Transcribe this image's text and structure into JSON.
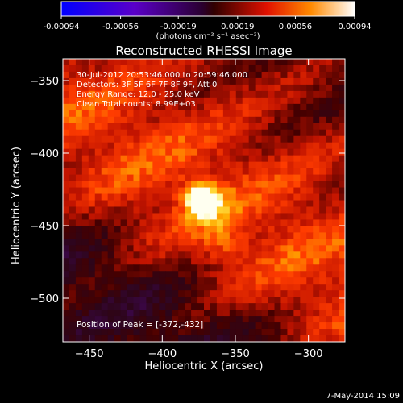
{
  "chart_data": {
    "type": "heatmap",
    "title": "Reconstructed RHESSI Image",
    "xlabel": "Heliocentric X (arcsec)",
    "ylabel": "Heliocentric Y (arcsec)",
    "xlim": [
      -468,
      -275
    ],
    "ylim": [
      -530,
      -335
    ],
    "x_ticks": [
      -450,
      -400,
      -350,
      -300
    ],
    "y_ticks": [
      -350,
      -400,
      -450,
      -500
    ],
    "annotations": [
      "30-Jul-2012 20:53:46.000 to 20:59:46.000",
      "Detectors: 3F 5F 6F 7F 8F 9F, Att 0",
      "Energy Range: 12.0 - 25.0 keV",
      "Clean   Total counts: 8.99E+03"
    ],
    "peak_label": "Position of Peak = [-372,-432]",
    "peak": [
      -372,
      -432
    ],
    "colorbar": {
      "range": [
        -0.00094,
        0.00094
      ],
      "tick_values": [
        -0.00094,
        -0.00056,
        -0.00019,
        0.00019,
        0.00056,
        0.00094
      ],
      "tick_labels": [
        "-0.00094",
        "-0.00056",
        "-0.00019",
        "0.00019",
        "0.00056",
        "0.00094"
      ],
      "unit_label": "(photons cm⁻² s⁻¹ asec⁻²)"
    },
    "grid": false
  },
  "footer": {
    "date_stamp": "7-May-2014 15:09"
  }
}
